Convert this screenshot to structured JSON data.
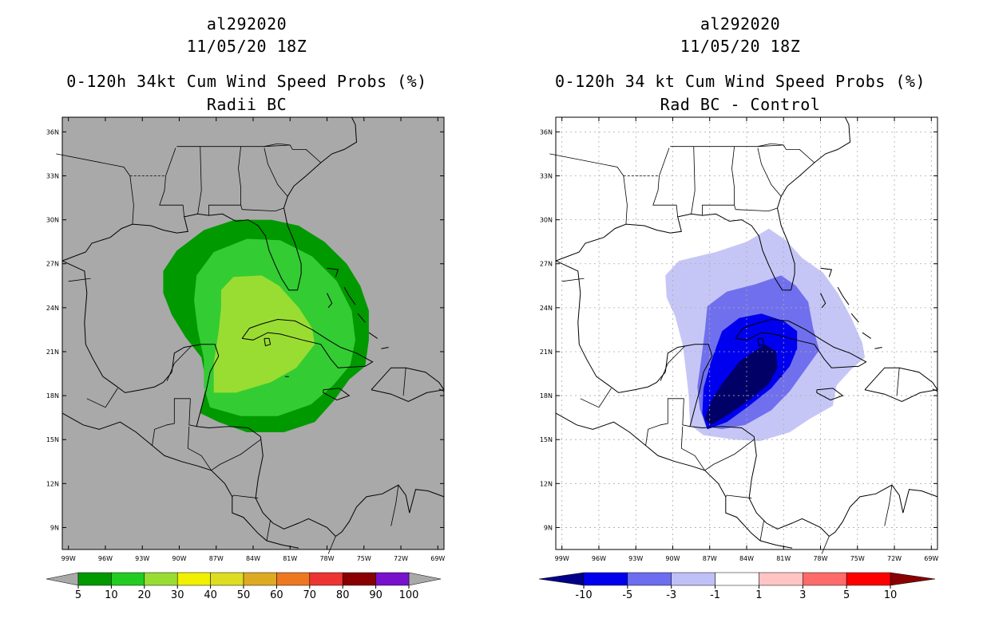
{
  "left_panel": {
    "storm_id": "al292020",
    "datetime": "11/05/20 18Z",
    "product": "0-120h 34kt Cum Wind Speed Probs (%)",
    "subtitle": "Radii BC",
    "background_color": "#a9a9a9",
    "contour_colors": [
      "#009900",
      "#33cc33",
      "#99dd33"
    ],
    "colorbar": {
      "labels": [
        "5",
        "10",
        "20",
        "30",
        "40",
        "50",
        "60",
        "70",
        "80",
        "90",
        "100"
      ],
      "colors": [
        "#009900",
        "#22cc22",
        "#99dd33",
        "#f0f000",
        "#dddd22",
        "#ddaa22",
        "#ee7722",
        "#ee3333",
        "#880000",
        "#7711cc"
      ]
    }
  },
  "right_panel": {
    "storm_id": "al292020",
    "datetime": "11/05/20 18Z",
    "product": "0-120h 34 kt Cum Wind Speed Probs (%)",
    "subtitle": "Rad BC - Control",
    "background_color": "#ffffff",
    "contour_colors": [
      "#c6c6f6",
      "#7070ee",
      "#0000ee",
      "#000066"
    ],
    "colorbar": {
      "labels": [
        "-10",
        "-5",
        "-3",
        "-1",
        "1",
        "3",
        "5",
        "10"
      ],
      "colors": [
        "#0000ee",
        "#6d6df0",
        "#c0c0f8",
        "#ffffff",
        "#ffc4c4",
        "#ff6a6a",
        "#ff0000"
      ],
      "left_arrow_color": "#000088",
      "right_arrow_color": "#880000"
    }
  },
  "axes": {
    "lat_labels": [
      "36N",
      "33N",
      "30N",
      "27N",
      "24N",
      "21N",
      "18N",
      "15N",
      "12N",
      "9N"
    ],
    "lon_labels": [
      "99W",
      "96W",
      "93W",
      "90W",
      "87W",
      "84W",
      "81W",
      "78W",
      "75W",
      "72W",
      "69W"
    ]
  }
}
